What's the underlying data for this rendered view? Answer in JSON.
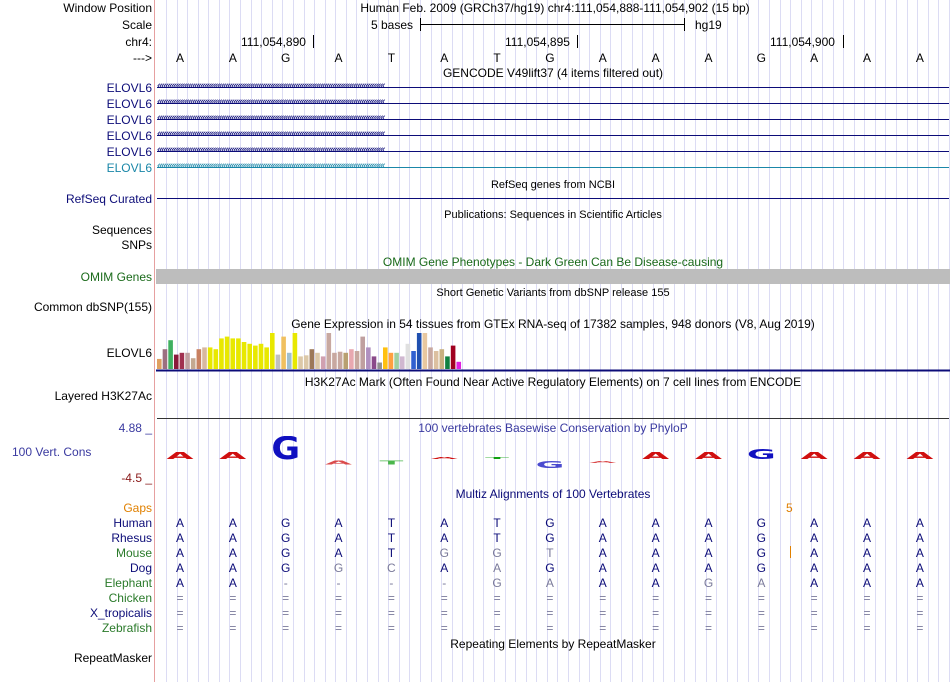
{
  "header": {
    "window_position_label": "Window Position",
    "scale_label": "Scale",
    "chrom_label": "chr4:",
    "strand_label": "--->",
    "assembly_text": "Human Feb. 2009 (GRCh37/hg19)   chr4:111,054,888-111,054,902 (15 bp)",
    "scale_text": "5 bases",
    "scale_db": "hg19",
    "coordinates": [
      "111,054,890",
      "111,054,895",
      "111,054,900"
    ],
    "bases": [
      "A",
      "A",
      "G",
      "A",
      "T",
      "A",
      "T",
      "G",
      "A",
      "A",
      "A",
      "G",
      "A",
      "A",
      "A"
    ]
  },
  "gencode": {
    "title": "GENCODE V49lift37 (4 items filtered out)",
    "items": [
      "ELOVL6",
      "ELOVL6",
      "ELOVL6",
      "ELOVL6",
      "ELOVL6",
      "ELOVL6"
    ],
    "colors": [
      "#0c0c78",
      "#0c0c78",
      "#0c0c78",
      "#0c0c78",
      "#0c0c78",
      "#1a87a8"
    ]
  },
  "refseq": {
    "title": "RefSeq genes from NCBI",
    "label": "RefSeq Curated"
  },
  "publications": {
    "title": "Publications: Sequences in Scientific Articles",
    "label1": "Sequences",
    "label2": "SNPs"
  },
  "omim": {
    "title": "OMIM Gene Phenotypes - Dark Green Can Be Disease-causing",
    "label": "OMIM Genes"
  },
  "dbsnp": {
    "title": "Short Genetic Variants from dbSNP release 155",
    "label": "Common dbSNP(155)"
  },
  "gtex": {
    "title": "Gene Expression in 54 tissues from GTEx RNA-seq of 17382 samples, 948 donors (V8, Aug 2019)",
    "label": "ELOVL6",
    "levels": [
      0.28,
      0.55,
      0.8,
      0.4,
      0.45,
      0.45,
      0.3,
      0.55,
      0.6,
      0.6,
      0.55,
      0.85,
      0.9,
      0.85,
      0.85,
      0.75,
      0.7,
      0.65,
      0.7,
      0.6,
      1.0,
      0.4,
      0.9,
      0.45,
      1.0,
      0.35,
      0.38,
      0.55,
      0.45,
      0.35,
      1.0,
      0.45,
      0.48,
      0.45,
      0.55,
      0.5,
      0.9,
      0.6,
      0.35,
      0.18,
      0.6,
      0.45,
      0.45,
      0.35,
      0.7,
      0.5,
      1.0,
      1.0,
      0.6,
      0.5,
      0.55,
      0.35,
      0.65,
      0.2
    ],
    "colors": [
      "#e0a060",
      "#9c7080",
      "#40b060",
      "#8a1a3a",
      "#a03050",
      "#c0a0a0",
      "#c4a890",
      "#c88060",
      "#d8b8a0",
      "#e8e800",
      "#e8e800",
      "#e8e800",
      "#e8e800",
      "#e8e800",
      "#e8e800",
      "#e8e800",
      "#e8e800",
      "#e8e800",
      "#e8e800",
      "#e8e800",
      "#e8e800",
      "#c0c0c0",
      "#f0c060",
      "#a0c0d0",
      "#e8e800",
      "#dcc8a8",
      "#dcc8a8",
      "#9c7858",
      "#dcc8a8",
      "#d0a0b0",
      "#c8a8a0",
      "#c8a8a0",
      "#c8a8a0",
      "#b8a070",
      "#e8a8b0",
      "#c8a8a0",
      "#c0a0a0",
      "#b090c0",
      "#8a4a8a",
      "#909090",
      "#ffc010",
      "#ffa040",
      "#a0d0a0",
      "#d0b8d0",
      "#e0e0e0",
      "#3060d0",
      "#2050b0",
      "#e8c8a0",
      "#c8a8a0",
      "#dcc0a0",
      "#c8b080",
      "#108040",
      "#a00020",
      "#e020e0"
    ]
  },
  "h3k27ac": {
    "title": "H3K27Ac Mark (Often Found Near Active Regulatory Elements) on 7 cell lines from ENCODE",
    "label": "Layered H3K27Ac"
  },
  "phylop": {
    "title": "100 vertebrates Basewise Conservation by PhyloP",
    "label": "100 Vert. Cons",
    "ymax": "4.88 _",
    "ymin": "-4.5 _",
    "scores": [
      1.0,
      1.0,
      3.2,
      -0.5,
      -0.5,
      0.2,
      0.0,
      -1.0,
      -0.3,
      1.0,
      1.0,
      1.4,
      1.0,
      1.0,
      1.0
    ]
  },
  "multiz": {
    "title": "Multiz Alignments of 100 Vertebrates",
    "gaps_label": "Gaps",
    "gap_count": "5",
    "species": [
      {
        "name": "Human",
        "color": "#0c0c78",
        "bases": [
          "A",
          "A",
          "G",
          "A",
          "T",
          "A",
          "T",
          "G",
          "A",
          "A",
          "A",
          "G",
          "A",
          "A",
          "A"
        ]
      },
      {
        "name": "Rhesus",
        "color": "#0c0c78",
        "bases": [
          "A",
          "A",
          "G",
          "A",
          "T",
          "A",
          "T",
          "G",
          "A",
          "A",
          "A",
          "G",
          "A",
          "A",
          "A"
        ]
      },
      {
        "name": "Mouse",
        "color": "#2a7a2a",
        "bases": [
          "A",
          "A",
          "G",
          "A",
          "T",
          "G",
          "G",
          "T",
          "A",
          "A",
          "A",
          "G",
          "A",
          "A",
          "A"
        ]
      },
      {
        "name": "Dog",
        "color": "#0c0c78",
        "bases": [
          "A",
          "A",
          "G",
          "G",
          "C",
          "A",
          "A",
          "G",
          "A",
          "A",
          "A",
          "G",
          "A",
          "A",
          "A"
        ]
      },
      {
        "name": "Elephant",
        "color": "#2a7a2a",
        "bases": [
          "A",
          "A",
          "-",
          "-",
          "-",
          "-",
          "G",
          "A",
          "A",
          "A",
          "G",
          "A",
          "A",
          "A",
          "A"
        ]
      },
      {
        "name": "Chicken",
        "color": "#2a7a2a",
        "bases": [
          "=",
          "=",
          "=",
          "=",
          "=",
          "=",
          "=",
          "=",
          "=",
          "=",
          "=",
          "=",
          "=",
          "=",
          "="
        ]
      },
      {
        "name": "X_tropicalis",
        "color": "#0c0c78",
        "bases": [
          "=",
          "=",
          "=",
          "=",
          "=",
          "=",
          "=",
          "=",
          "=",
          "=",
          "=",
          "=",
          "=",
          "=",
          "="
        ]
      },
      {
        "name": "Zebrafish",
        "color": "#2a7a2a",
        "bases": [
          "=",
          "=",
          "=",
          "=",
          "=",
          "=",
          "=",
          "=",
          "=",
          "=",
          "=",
          "=",
          "=",
          "=",
          "="
        ]
      }
    ]
  },
  "repeatmasker": {
    "title": "Repeating Elements by RepeatMasker",
    "label": "RepeatMasker"
  }
}
